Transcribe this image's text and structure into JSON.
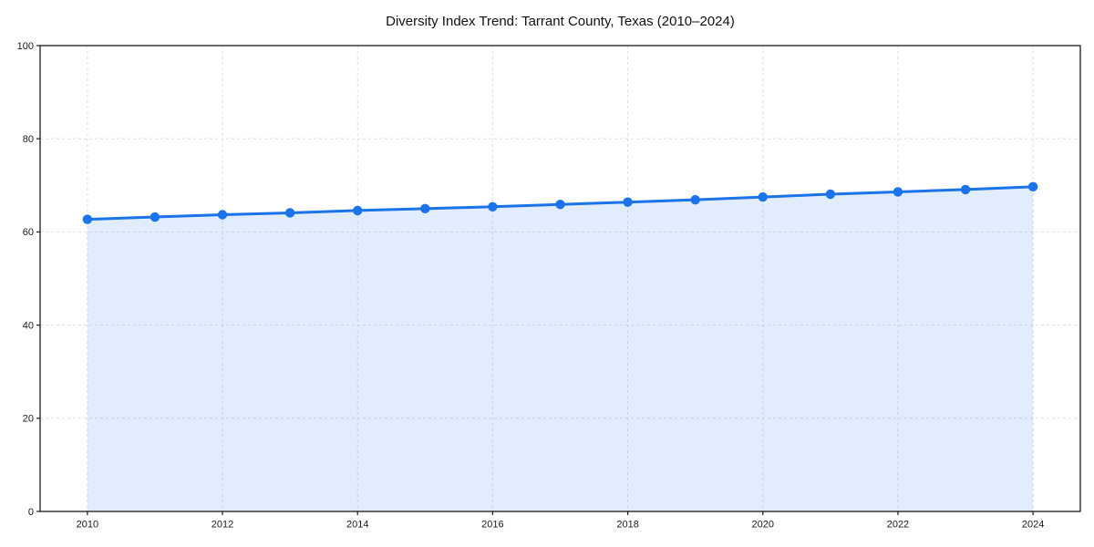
{
  "page": {
    "background": "#ffffff"
  },
  "chart_data": {
    "type": "area",
    "title": "Diversity Index Trend: Tarrant County, Texas (2010–2024)",
    "xlabel": "",
    "ylabel": "",
    "x": [
      2010,
      2011,
      2012,
      2013,
      2014,
      2015,
      2016,
      2017,
      2018,
      2019,
      2020,
      2021,
      2022,
      2023,
      2024
    ],
    "values": [
      62.7,
      63.2,
      63.7,
      64.1,
      64.6,
      65.0,
      65.4,
      65.9,
      66.4,
      66.9,
      67.5,
      68.1,
      68.6,
      69.1,
      69.7
    ],
    "xlim": [
      2009.3,
      2024.7
    ],
    "ylim": [
      0,
      100
    ],
    "xticks": [
      2010,
      2012,
      2014,
      2016,
      2018,
      2020,
      2022,
      2024
    ],
    "yticks": [
      0,
      20,
      40,
      60,
      80,
      100
    ],
    "grid": true,
    "grid_style": "dashed",
    "legend_position": "none",
    "line_color": "#1a73e8",
    "marker_color": "#1a73e8",
    "fill_color": "rgba(26,115,232,0.13)",
    "grid_color": "#dedede",
    "axis_color": "#1a1a1a",
    "text_color": "#1a1a1a",
    "marker": "circle",
    "marker_radius": 5.2,
    "line_width": 3
  }
}
